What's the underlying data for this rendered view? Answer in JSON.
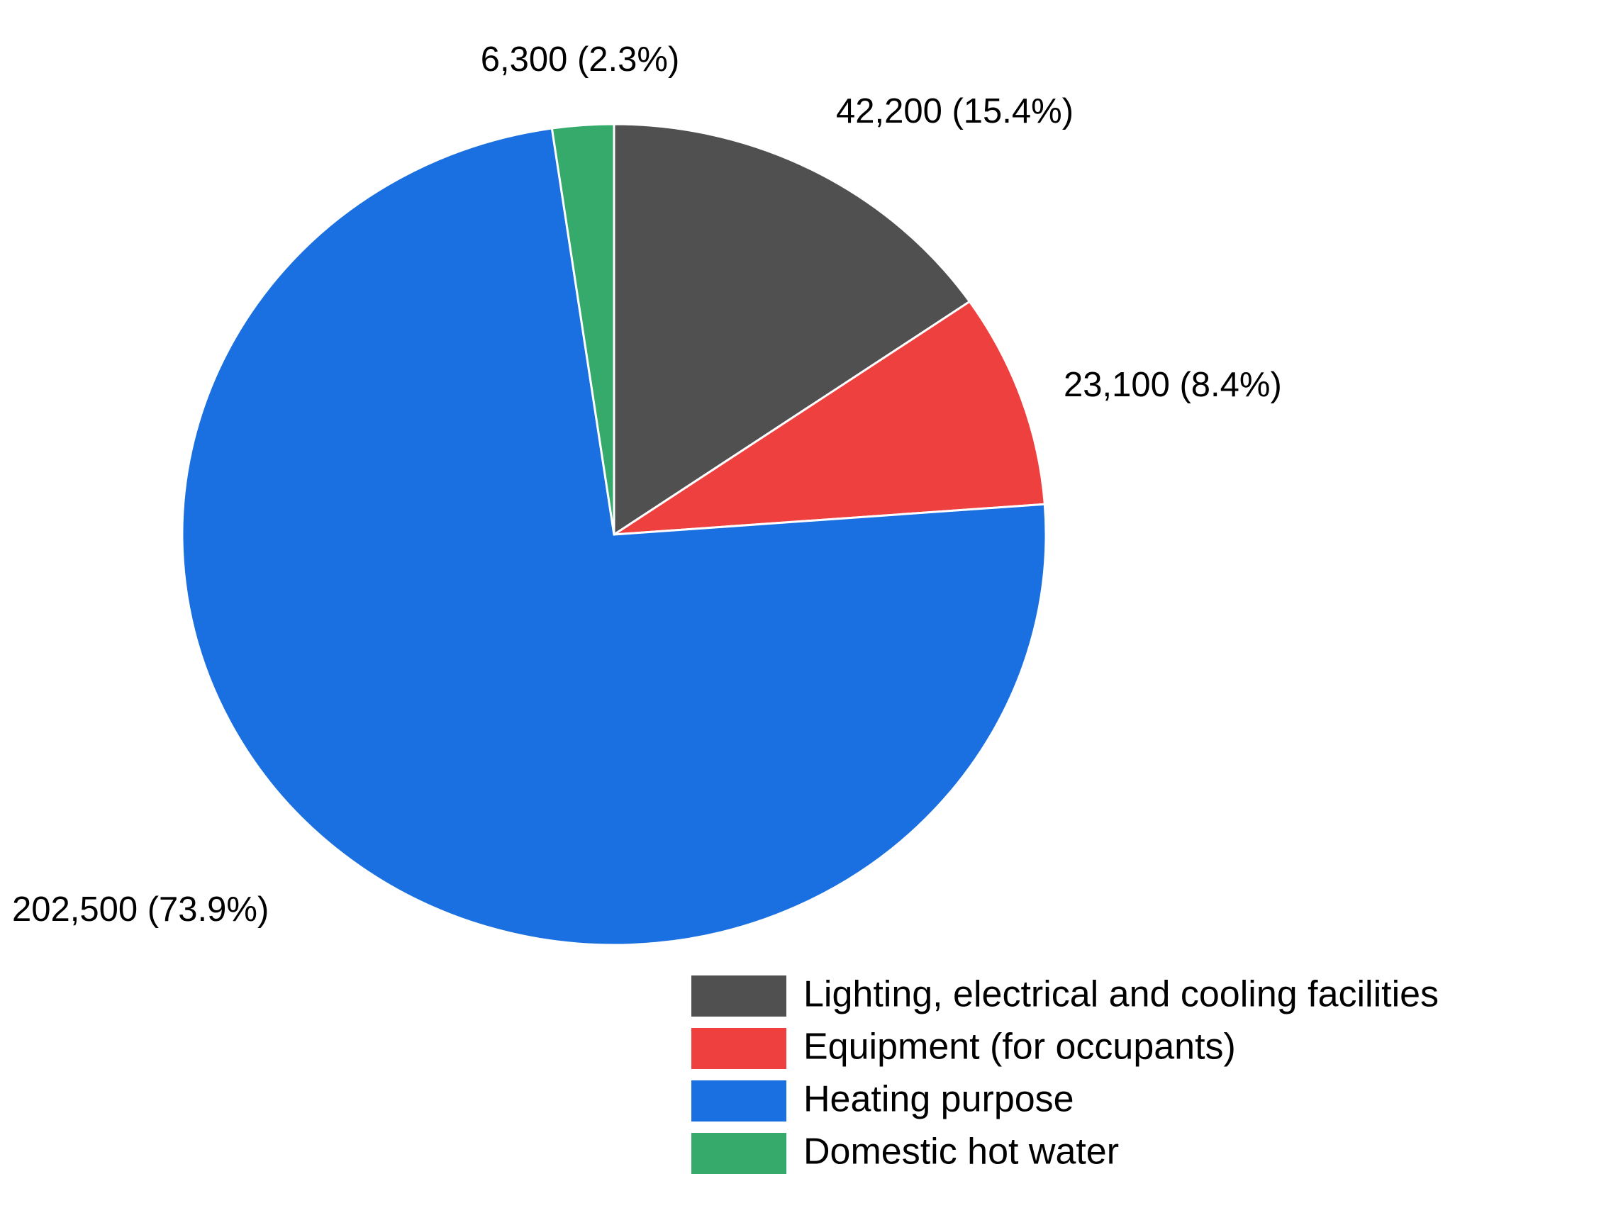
{
  "chart_data": {
    "type": "pie",
    "categories": [
      "Lighting, electrical and cooling facilities",
      "Equipment (for occupants)",
      "Heating purpose",
      "Domestic hot water"
    ],
    "values": [
      42200,
      23100,
      202500,
      6300
    ],
    "value_labels": [
      "42,200 (15.4%)",
      "23,100 (8.4%)",
      "202,500 (73.9%)",
      "6,300 (2.3%)"
    ],
    "colors": [
      "#505050",
      "#ef4040",
      "#1a70e0",
      "#35aa6a"
    ],
    "legend": "bottom-right"
  }
}
